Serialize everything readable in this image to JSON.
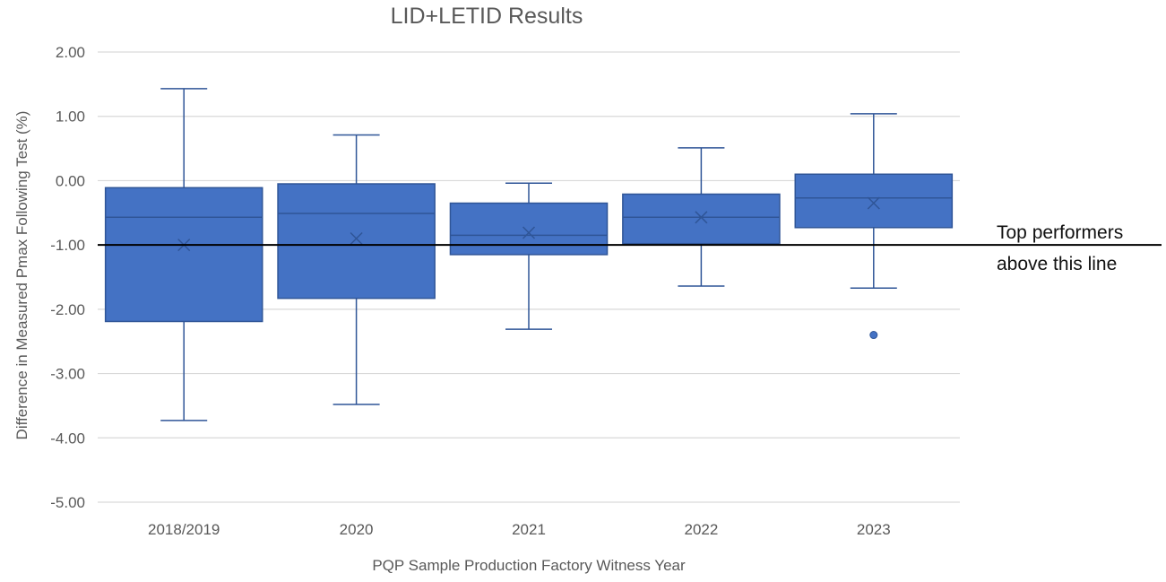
{
  "chart_data": {
    "type": "box",
    "title": "LID+LETID Results",
    "xlabel": "PQP Sample Production Factory Witness Year",
    "ylabel": "Difference in Measured Pmax Following Test (%)",
    "ylim": [
      -5,
      2
    ],
    "yticks": [
      "2.00",
      "1.00",
      "0.00",
      "-1.00",
      "-2.00",
      "-3.00",
      "-4.00",
      "-5.00"
    ],
    "grid": true,
    "categories": [
      "2018/2019",
      "2020",
      "2021",
      "2022",
      "2023"
    ],
    "boxes": [
      {
        "category": "2018/2019",
        "whisker_low": -3.73,
        "q1": -2.19,
        "median": -0.57,
        "q3": -0.11,
        "whisker_high": 1.43,
        "mean": -1.0,
        "outliers": []
      },
      {
        "category": "2020",
        "whisker_low": -3.48,
        "q1": -1.83,
        "median": -0.51,
        "q3": -0.05,
        "whisker_high": 0.71,
        "mean": -0.9,
        "outliers": []
      },
      {
        "category": "2021",
        "whisker_low": -2.31,
        "q1": -1.15,
        "median": -0.85,
        "q3": -0.35,
        "whisker_high": -0.04,
        "mean": -0.81,
        "outliers": []
      },
      {
        "category": "2022",
        "whisker_low": -1.64,
        "q1": -0.98,
        "median": -0.57,
        "q3": -0.21,
        "whisker_high": 0.51,
        "mean": -0.57,
        "outliers": []
      },
      {
        "category": "2023",
        "whisker_low": -1.67,
        "q1": -0.73,
        "median": -0.27,
        "q3": 0.1,
        "whisker_high": 1.04,
        "mean": -0.35,
        "outliers": [
          -2.4
        ]
      }
    ],
    "reference_line": {
      "y": -1.0,
      "label_line1": "Top performers",
      "label_line2": "above this line"
    },
    "colors": {
      "box_fill": "#4472C4",
      "box_stroke": "#2F5597",
      "whisker": "#2F5597",
      "median": "#2F5597",
      "mean_marker": "#2F5597",
      "grid": "#D9D9D9",
      "reference_line": "#000000",
      "text": "#595959"
    }
  }
}
